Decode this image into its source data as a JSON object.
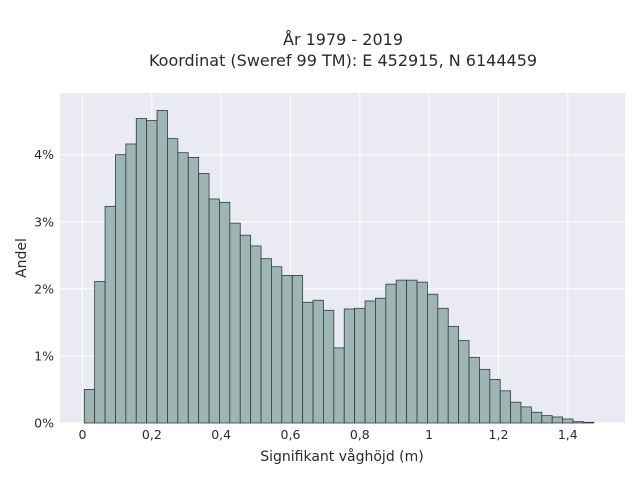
{
  "chart_data": {
    "type": "bar",
    "title": "År 1979 - 2019",
    "subtitle": "Koordinat (Sweref 99 TM): E 452915, N 6144459",
    "xlabel": "Signifikant våghöjd (m)",
    "ylabel": "Andel",
    "xlim": [
      -0.065,
      1.565
    ],
    "ylim": [
      0,
      0.0492
    ],
    "x_ticks": [
      {
        "value": 0,
        "label": "0"
      },
      {
        "value": 0.2,
        "label": "0,2"
      },
      {
        "value": 0.4,
        "label": "0,4"
      },
      {
        "value": 0.6,
        "label": "0,6"
      },
      {
        "value": 0.8,
        "label": "0,8"
      },
      {
        "value": 1.0,
        "label": "1"
      },
      {
        "value": 1.2,
        "label": "1,2"
      },
      {
        "value": 1.4,
        "label": "1,4"
      }
    ],
    "y_ticks": [
      {
        "value": 0,
        "label": "0%"
      },
      {
        "value": 0.01,
        "label": "1%"
      },
      {
        "value": 0.02,
        "label": "2%"
      },
      {
        "value": 0.03,
        "label": "3%"
      },
      {
        "value": 0.04,
        "label": "4%"
      }
    ],
    "bin_width": 0.03,
    "bin_start": 0.005,
    "values": [
      0.005,
      0.0211,
      0.0323,
      0.04,
      0.0416,
      0.0454,
      0.0451,
      0.0466,
      0.0424,
      0.0403,
      0.0396,
      0.0372,
      0.0334,
      0.0329,
      0.0298,
      0.028,
      0.0264,
      0.0245,
      0.0233,
      0.022,
      0.022,
      0.018,
      0.0183,
      0.0168,
      0.0112,
      0.017,
      0.0171,
      0.0182,
      0.0186,
      0.0207,
      0.0213,
      0.0213,
      0.021,
      0.0192,
      0.0171,
      0.0144,
      0.0123,
      0.0098,
      0.008,
      0.0065,
      0.0048,
      0.0031,
      0.0024,
      0.0016,
      0.0011,
      0.0009,
      0.0006,
      0.0002,
      0.0001
    ],
    "grid": true,
    "colors": {
      "bar_fill": "#9db5b3",
      "bar_edge": "#2f3d3c",
      "plot_background": "#eaeaf2",
      "grid": "#ffffff"
    }
  }
}
